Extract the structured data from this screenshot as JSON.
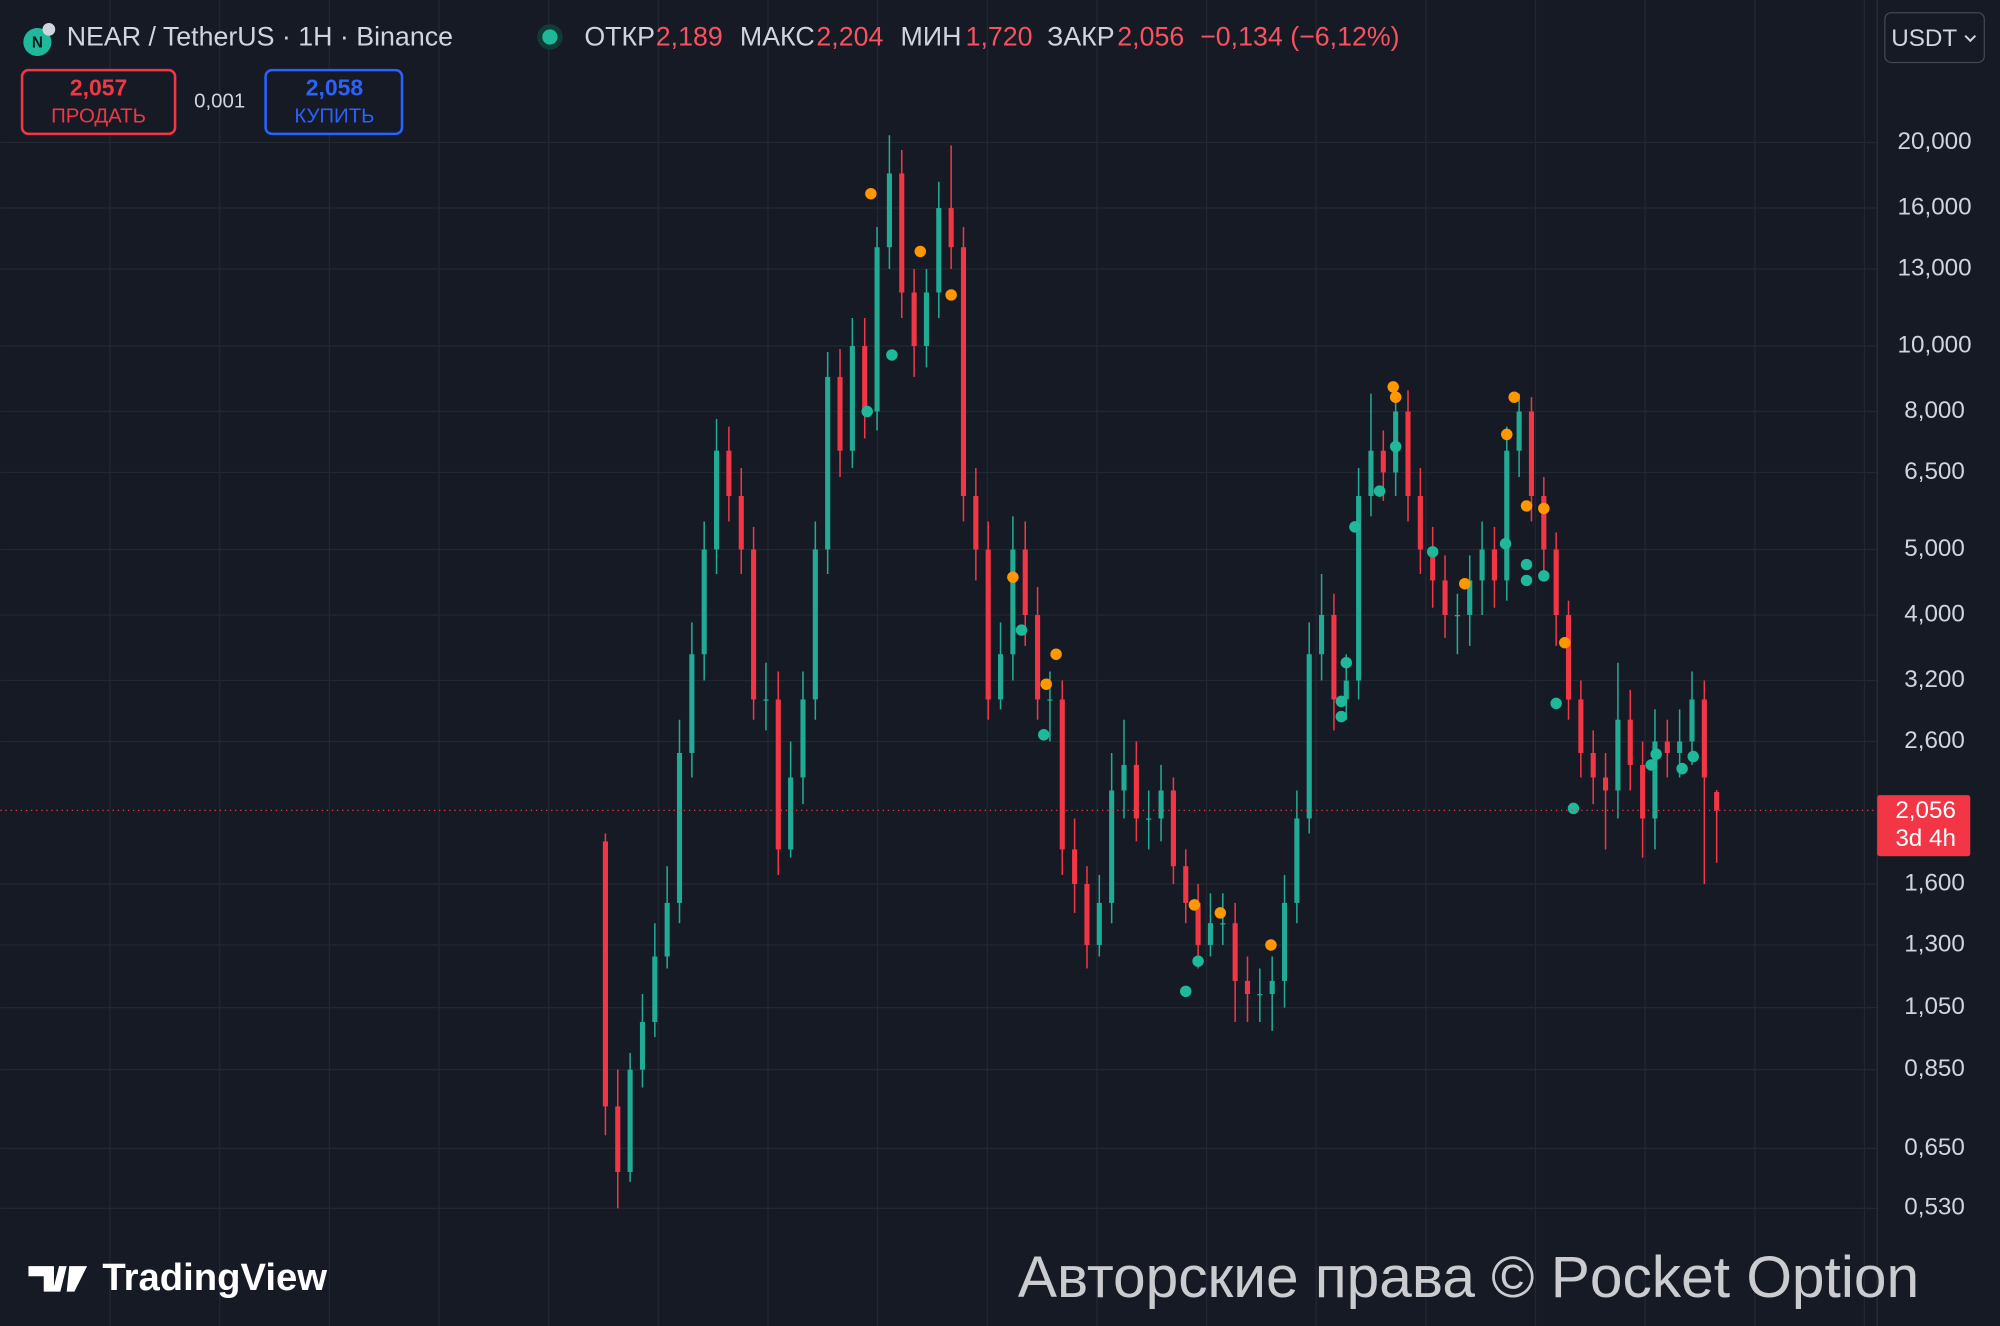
{
  "header": {
    "symbol": "NEAR / TetherUS · 1H · Binance",
    "stats": [
      {
        "label": "ОТКР",
        "value": "2,189"
      },
      {
        "label": "МАКС",
        "value": "2,204"
      },
      {
        "label": "МИН",
        "value": "1,720"
      },
      {
        "label": "ЗАКР",
        "value": "2,056"
      }
    ],
    "change": "−0,134 (−6,12%)",
    "currency": "USDT"
  },
  "trade": {
    "sell_price": "2,057",
    "sell_label": "ПРОДАТЬ",
    "spread": "0,001",
    "buy_price": "2,058",
    "buy_label": "КУПИТЬ"
  },
  "branding": {
    "logo": "TradingView",
    "watermark": "Авторские права © Pocket Option"
  },
  "chart_data": {
    "type": "candlestick",
    "open": [
      1.85,
      0.75,
      0.6,
      0.85,
      1.0,
      1.25,
      1.5,
      2.5,
      3.5,
      5.0,
      7.0,
      6.0,
      5.0,
      3.0,
      3.0,
      1.8,
      2.3,
      3.0,
      5.0,
      9.0,
      7.0,
      10,
      8,
      14,
      18,
      12,
      10,
      12,
      16,
      14,
      6,
      5,
      3,
      3.5,
      5,
      4,
      3,
      3,
      1.8,
      1.6,
      1.3,
      1.5,
      2.2,
      2.4,
      2.0,
      2.0,
      2.2,
      1.7,
      1.5,
      1.3,
      1.4,
      1.4,
      1.15,
      1.1,
      1.1,
      1.15,
      1.5,
      2.0,
      3.5,
      4.0,
      3.0,
      3.2,
      6.0,
      7.0,
      6.5,
      8.0,
      6.0,
      5.0,
      4.5,
      4.0,
      4.0,
      4.5,
      5.0,
      4.5,
      7.0,
      8.0,
      6.0,
      5.0,
      4.0,
      3.0,
      2.5,
      2.3,
      2.2,
      2.8,
      2.4,
      2.0,
      2.6,
      2.5,
      2.6,
      3.0,
      2.189
    ],
    "high": [
      1.9,
      0.85,
      0.9,
      1.1,
      1.4,
      1.7,
      2.8,
      3.9,
      5.5,
      7.8,
      7.6,
      6.6,
      5.4,
      3.4,
      3.3,
      2.6,
      3.3,
      5.5,
      9.8,
      9.9,
      11,
      11,
      15,
      20.5,
      19.5,
      13,
      13,
      17.5,
      19.8,
      15,
      6.6,
      5.5,
      3.9,
      5.6,
      5.5,
      4.4,
      3.3,
      3.2,
      2.0,
      1.7,
      1.65,
      2.5,
      2.8,
      2.6,
      2.2,
      2.4,
      2.3,
      1.8,
      1.6,
      1.55,
      1.55,
      1.5,
      1.25,
      1.2,
      1.25,
      1.65,
      2.2,
      3.9,
      4.6,
      4.3,
      3.5,
      6.6,
      8.5,
      7.5,
      8.8,
      8.6,
      6.6,
      5.4,
      4.9,
      4.3,
      4.9,
      5.5,
      5.4,
      7.6,
      8.5,
      8.4,
      6.4,
      5.3,
      4.2,
      3.2,
      2.7,
      2.5,
      3.4,
      3.1,
      2.6,
      2.9,
      2.8,
      2.9,
      3.3,
      3.2,
      2.204
    ],
    "low": [
      0.68,
      0.53,
      0.58,
      0.8,
      0.95,
      1.2,
      1.4,
      2.3,
      3.2,
      4.6,
      5.5,
      4.6,
      2.8,
      2.7,
      1.65,
      1.75,
      2.1,
      2.8,
      4.6,
      6.4,
      6.6,
      7.3,
      7.5,
      13,
      11,
      9.0,
      9.3,
      11,
      13,
      5.5,
      4.5,
      2.8,
      2.9,
      3.2,
      3.6,
      2.8,
      2.6,
      1.65,
      1.45,
      1.2,
      1.25,
      1.4,
      2.0,
      1.85,
      1.8,
      1.85,
      1.6,
      1.4,
      1.2,
      1.25,
      1.3,
      1.0,
      1.0,
      1.0,
      0.97,
      1.05,
      1.4,
      1.9,
      3.2,
      2.7,
      2.8,
      3.0,
      5.6,
      5.9,
      6.0,
      5.5,
      4.6,
      4.1,
      3.7,
      3.5,
      3.6,
      4.0,
      4.1,
      4.2,
      6.4,
      5.5,
      4.6,
      3.6,
      2.8,
      2.3,
      2.1,
      1.8,
      2.0,
      2.2,
      1.75,
      1.8,
      2.3,
      2.3,
      2.4,
      1.6,
      1.72
    ],
    "close": [
      0.75,
      0.6,
      0.85,
      1.0,
      1.25,
      1.5,
      2.5,
      3.5,
      5.0,
      7.0,
      6.0,
      5.0,
      3.0,
      3.0,
      1.8,
      2.3,
      3.0,
      5.0,
      9.0,
      7.0,
      10,
      8,
      14,
      18,
      12,
      10,
      12,
      16,
      14,
      6,
      5,
      3,
      3.5,
      5,
      4,
      3,
      3,
      1.8,
      1.6,
      1.3,
      1.5,
      2.2,
      2.4,
      2.0,
      2.0,
      2.2,
      1.7,
      1.5,
      1.3,
      1.4,
      1.4,
      1.15,
      1.1,
      1.1,
      1.15,
      1.5,
      2.0,
      3.5,
      4.0,
      3.0,
      3.2,
      6.0,
      7.0,
      6.5,
      8.0,
      6.0,
      5.0,
      4.5,
      4.0,
      4.0,
      4.5,
      5.0,
      4.5,
      7.0,
      8.0,
      6.0,
      5.0,
      4.0,
      3.0,
      2.5,
      2.3,
      2.2,
      2.8,
      2.4,
      2.0,
      2.6,
      2.5,
      2.6,
      3.0,
      2.3,
      2.056
    ],
    "up_color": "#22ab94",
    "down_color": "#f23645",
    "xlim": [
      -49,
      103
    ],
    "ylim": [
      0.355,
      32.5
    ],
    "log_scale": true,
    "grid": true,
    "yticks": [
      {
        "value": 0.53,
        "label": "0,530"
      },
      {
        "value": 0.65,
        "label": "0,650"
      },
      {
        "value": 0.85,
        "label": "0,850"
      },
      {
        "value": 1.05,
        "label": "1,050"
      },
      {
        "value": 1.3,
        "label": "1,300"
      },
      {
        "value": 1.6,
        "label": "1,600"
      },
      {
        "value": 2.6,
        "label": "2,600"
      },
      {
        "value": 3.2,
        "label": "3,200"
      },
      {
        "value": 4,
        "label": "4,000"
      },
      {
        "value": 5,
        "label": "5,000"
      },
      {
        "value": 6.5,
        "label": "6,500"
      },
      {
        "value": 8,
        "label": "8,000"
      },
      {
        "value": 10,
        "label": "10,000"
      },
      {
        "value": 13,
        "label": "13,000"
      },
      {
        "value": 16,
        "label": "16,000"
      },
      {
        "value": 20,
        "label": "20,000"
      }
    ],
    "last_price": {
      "value": 2.056,
      "label": "2,056"
    },
    "countdown": "3d 4h",
    "signals": [
      {
        "color": "#ff9800",
        "x": [
          21.5,
          25.5,
          28,
          33,
          35.7,
          36.5,
          47.7,
          49.8,
          53.9,
          63.8,
          64,
          69.6,
          73,
          73.6,
          74.6,
          76,
          77.7
        ],
        "values": [
          16.8,
          13.8,
          11.9,
          4.55,
          3.16,
          3.5,
          1.49,
          1.45,
          1.3,
          8.7,
          8.4,
          4.45,
          7.4,
          8.4,
          5.8,
          5.75,
          3.64
        ]
      },
      {
        "color": "#1fb89a",
        "x": [
          21.2,
          23.2,
          33.7,
          35.5,
          47,
          48,
          59.6,
          59.6,
          60,
          60.7,
          62.7,
          64,
          67,
          72.9,
          74.6,
          74.6,
          76,
          77,
          78.4,
          84.7,
          85.1,
          87.2,
          88.1
        ],
        "values": [
          8.0,
          9.7,
          3.8,
          2.66,
          1.11,
          1.23,
          2.98,
          2.83,
          3.4,
          5.4,
          6.1,
          7.1,
          4.96,
          5.1,
          4.75,
          4.5,
          4.57,
          2.96,
          2.07,
          2.4,
          2.49,
          2.37,
          2.47
        ]
      }
    ]
  }
}
